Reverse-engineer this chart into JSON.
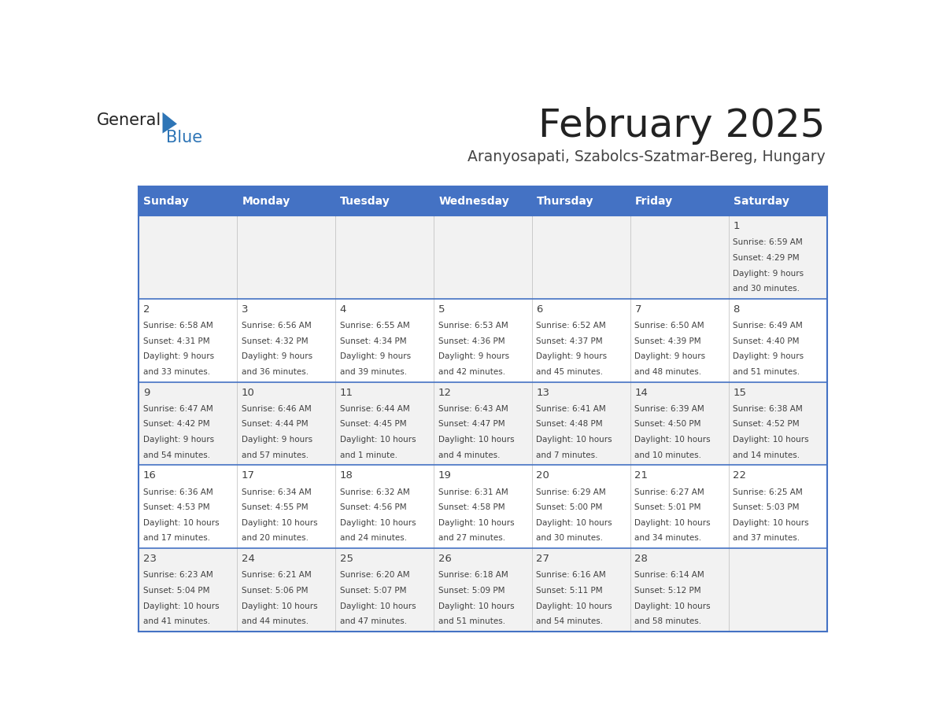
{
  "title": "February 2025",
  "subtitle": "Aranyosapati, Szabolcs-Szatmar-Bereg, Hungary",
  "header_bg": "#4472C4",
  "header_text_color": "#FFFFFF",
  "weekdays": [
    "Sunday",
    "Monday",
    "Tuesday",
    "Wednesday",
    "Thursday",
    "Friday",
    "Saturday"
  ],
  "row_bg_odd": "#F2F2F2",
  "row_bg_even": "#FFFFFF",
  "cell_border_color": "#4472C4",
  "text_color": "#404040",
  "logo_general_color": "#222222",
  "logo_blue_color": "#2E75B6",
  "days": [
    {
      "day": 1,
      "col": 6,
      "row": 0,
      "sunrise": "6:59 AM",
      "sunset": "4:29 PM",
      "daylight_line1": "Daylight: 9 hours",
      "daylight_line2": "and 30 minutes."
    },
    {
      "day": 2,
      "col": 0,
      "row": 1,
      "sunrise": "6:58 AM",
      "sunset": "4:31 PM",
      "daylight_line1": "Daylight: 9 hours",
      "daylight_line2": "and 33 minutes."
    },
    {
      "day": 3,
      "col": 1,
      "row": 1,
      "sunrise": "6:56 AM",
      "sunset": "4:32 PM",
      "daylight_line1": "Daylight: 9 hours",
      "daylight_line2": "and 36 minutes."
    },
    {
      "day": 4,
      "col": 2,
      "row": 1,
      "sunrise": "6:55 AM",
      "sunset": "4:34 PM",
      "daylight_line1": "Daylight: 9 hours",
      "daylight_line2": "and 39 minutes."
    },
    {
      "day": 5,
      "col": 3,
      "row": 1,
      "sunrise": "6:53 AM",
      "sunset": "4:36 PM",
      "daylight_line1": "Daylight: 9 hours",
      "daylight_line2": "and 42 minutes."
    },
    {
      "day": 6,
      "col": 4,
      "row": 1,
      "sunrise": "6:52 AM",
      "sunset": "4:37 PM",
      "daylight_line1": "Daylight: 9 hours",
      "daylight_line2": "and 45 minutes."
    },
    {
      "day": 7,
      "col": 5,
      "row": 1,
      "sunrise": "6:50 AM",
      "sunset": "4:39 PM",
      "daylight_line1": "Daylight: 9 hours",
      "daylight_line2": "and 48 minutes."
    },
    {
      "day": 8,
      "col": 6,
      "row": 1,
      "sunrise": "6:49 AM",
      "sunset": "4:40 PM",
      "daylight_line1": "Daylight: 9 hours",
      "daylight_line2": "and 51 minutes."
    },
    {
      "day": 9,
      "col": 0,
      "row": 2,
      "sunrise": "6:47 AM",
      "sunset": "4:42 PM",
      "daylight_line1": "Daylight: 9 hours",
      "daylight_line2": "and 54 minutes."
    },
    {
      "day": 10,
      "col": 1,
      "row": 2,
      "sunrise": "6:46 AM",
      "sunset": "4:44 PM",
      "daylight_line1": "Daylight: 9 hours",
      "daylight_line2": "and 57 minutes."
    },
    {
      "day": 11,
      "col": 2,
      "row": 2,
      "sunrise": "6:44 AM",
      "sunset": "4:45 PM",
      "daylight_line1": "Daylight: 10 hours",
      "daylight_line2": "and 1 minute."
    },
    {
      "day": 12,
      "col": 3,
      "row": 2,
      "sunrise": "6:43 AM",
      "sunset": "4:47 PM",
      "daylight_line1": "Daylight: 10 hours",
      "daylight_line2": "and 4 minutes."
    },
    {
      "day": 13,
      "col": 4,
      "row": 2,
      "sunrise": "6:41 AM",
      "sunset": "4:48 PM",
      "daylight_line1": "Daylight: 10 hours",
      "daylight_line2": "and 7 minutes."
    },
    {
      "day": 14,
      "col": 5,
      "row": 2,
      "sunrise": "6:39 AM",
      "sunset": "4:50 PM",
      "daylight_line1": "Daylight: 10 hours",
      "daylight_line2": "and 10 minutes."
    },
    {
      "day": 15,
      "col": 6,
      "row": 2,
      "sunrise": "6:38 AM",
      "sunset": "4:52 PM",
      "daylight_line1": "Daylight: 10 hours",
      "daylight_line2": "and 14 minutes."
    },
    {
      "day": 16,
      "col": 0,
      "row": 3,
      "sunrise": "6:36 AM",
      "sunset": "4:53 PM",
      "daylight_line1": "Daylight: 10 hours",
      "daylight_line2": "and 17 minutes."
    },
    {
      "day": 17,
      "col": 1,
      "row": 3,
      "sunrise": "6:34 AM",
      "sunset": "4:55 PM",
      "daylight_line1": "Daylight: 10 hours",
      "daylight_line2": "and 20 minutes."
    },
    {
      "day": 18,
      "col": 2,
      "row": 3,
      "sunrise": "6:32 AM",
      "sunset": "4:56 PM",
      "daylight_line1": "Daylight: 10 hours",
      "daylight_line2": "and 24 minutes."
    },
    {
      "day": 19,
      "col": 3,
      "row": 3,
      "sunrise": "6:31 AM",
      "sunset": "4:58 PM",
      "daylight_line1": "Daylight: 10 hours",
      "daylight_line2": "and 27 minutes."
    },
    {
      "day": 20,
      "col": 4,
      "row": 3,
      "sunrise": "6:29 AM",
      "sunset": "5:00 PM",
      "daylight_line1": "Daylight: 10 hours",
      "daylight_line2": "and 30 minutes."
    },
    {
      "day": 21,
      "col": 5,
      "row": 3,
      "sunrise": "6:27 AM",
      "sunset": "5:01 PM",
      "daylight_line1": "Daylight: 10 hours",
      "daylight_line2": "and 34 minutes."
    },
    {
      "day": 22,
      "col": 6,
      "row": 3,
      "sunrise": "6:25 AM",
      "sunset": "5:03 PM",
      "daylight_line1": "Daylight: 10 hours",
      "daylight_line2": "and 37 minutes."
    },
    {
      "day": 23,
      "col": 0,
      "row": 4,
      "sunrise": "6:23 AM",
      "sunset": "5:04 PM",
      "daylight_line1": "Daylight: 10 hours",
      "daylight_line2": "and 41 minutes."
    },
    {
      "day": 24,
      "col": 1,
      "row": 4,
      "sunrise": "6:21 AM",
      "sunset": "5:06 PM",
      "daylight_line1": "Daylight: 10 hours",
      "daylight_line2": "and 44 minutes."
    },
    {
      "day": 25,
      "col": 2,
      "row": 4,
      "sunrise": "6:20 AM",
      "sunset": "5:07 PM",
      "daylight_line1": "Daylight: 10 hours",
      "daylight_line2": "and 47 minutes."
    },
    {
      "day": 26,
      "col": 3,
      "row": 4,
      "sunrise": "6:18 AM",
      "sunset": "5:09 PM",
      "daylight_line1": "Daylight: 10 hours",
      "daylight_line2": "and 51 minutes."
    },
    {
      "day": 27,
      "col": 4,
      "row": 4,
      "sunrise": "6:16 AM",
      "sunset": "5:11 PM",
      "daylight_line1": "Daylight: 10 hours",
      "daylight_line2": "and 54 minutes."
    },
    {
      "day": 28,
      "col": 5,
      "row": 4,
      "sunrise": "6:14 AM",
      "sunset": "5:12 PM",
      "daylight_line1": "Daylight: 10 hours",
      "daylight_line2": "and 58 minutes."
    }
  ]
}
